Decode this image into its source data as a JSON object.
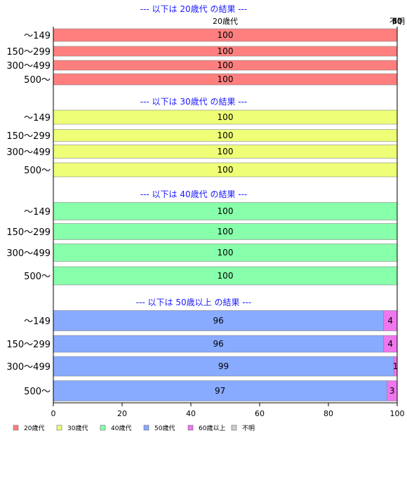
{
  "chart_data": {
    "type": "bar",
    "orientation": "horizontal",
    "stacked": true,
    "xlim": [
      0,
      100
    ],
    "x_ticks": [
      "0",
      "20",
      "40",
      "60",
      "80",
      "100"
    ],
    "column_header_labels": [
      "20歳代",
      "30",
      "40",
      "50",
      "60",
      "不明"
    ],
    "legend": [
      {
        "name": "20歳代",
        "color": "#ff7f7f"
      },
      {
        "name": "30歳代",
        "color": "#eeff77"
      },
      {
        "name": "40歳代",
        "color": "#88ffaa"
      },
      {
        "name": "50歳代",
        "color": "#88aaff"
      },
      {
        "name": "60歳以上",
        "color": "#ee77ee"
      },
      {
        "name": "不明",
        "color": "#cccccc"
      }
    ],
    "groups": [
      {
        "title": "--- 以下は 20歳代 の結果 ---",
        "rows": [
          {
            "category": "〜149",
            "segments": [
              {
                "series": "20歳代",
                "value": 100,
                "label": "100"
              }
            ]
          },
          {
            "category": "150〜299",
            "segments": [
              {
                "series": "20歳代",
                "value": 100,
                "label": "100"
              }
            ]
          },
          {
            "category": "300〜499",
            "segments": [
              {
                "series": "20歳代",
                "value": 100,
                "label": "100"
              }
            ]
          },
          {
            "category": "500〜",
            "segments": [
              {
                "series": "20歳代",
                "value": 100,
                "label": "100"
              }
            ]
          }
        ]
      },
      {
        "title": "--- 以下は 30歳代 の結果 ---",
        "rows": [
          {
            "category": "〜149",
            "segments": [
              {
                "series": "30歳代",
                "value": 100,
                "label": "100"
              }
            ]
          },
          {
            "category": "150〜299",
            "segments": [
              {
                "series": "30歳代",
                "value": 100,
                "label": "100"
              }
            ]
          },
          {
            "category": "300〜499",
            "segments": [
              {
                "series": "30歳代",
                "value": 100,
                "label": "100"
              }
            ]
          },
          {
            "category": "500〜",
            "segments": [
              {
                "series": "30歳代",
                "value": 100,
                "label": "100"
              }
            ]
          }
        ]
      },
      {
        "title": "--- 以下は 40歳代 の結果 ---",
        "rows": [
          {
            "category": "〜149",
            "segments": [
              {
                "series": "40歳代",
                "value": 100,
                "label": "100"
              }
            ]
          },
          {
            "category": "150〜299",
            "segments": [
              {
                "series": "40歳代",
                "value": 100,
                "label": "100"
              }
            ]
          },
          {
            "category": "300〜499",
            "segments": [
              {
                "series": "40歳代",
                "value": 100,
                "label": "100"
              }
            ]
          },
          {
            "category": "500〜",
            "segments": [
              {
                "series": "40歳代",
                "value": 100,
                "label": "100"
              }
            ]
          }
        ]
      },
      {
        "title": "--- 以下は 50歳以上 の結果 ---",
        "rows": [
          {
            "category": "〜149",
            "segments": [
              {
                "series": "50歳代",
                "value": 96,
                "label": "96"
              },
              {
                "series": "60歳以上",
                "value": 4,
                "label": "4"
              }
            ]
          },
          {
            "category": "150〜299",
            "segments": [
              {
                "series": "50歳代",
                "value": 96,
                "label": "96"
              },
              {
                "series": "60歳以上",
                "value": 4,
                "label": "4"
              }
            ]
          },
          {
            "category": "300〜499",
            "segments": [
              {
                "series": "50歳代",
                "value": 99,
                "label": "99"
              },
              {
                "series": "60歳以上",
                "value": 1,
                "label": "1"
              }
            ]
          },
          {
            "category": "500〜",
            "segments": [
              {
                "series": "50歳代",
                "value": 97,
                "label": "97"
              },
              {
                "series": "60歳以上",
                "value": 3,
                "label": "3"
              }
            ]
          }
        ]
      }
    ]
  }
}
